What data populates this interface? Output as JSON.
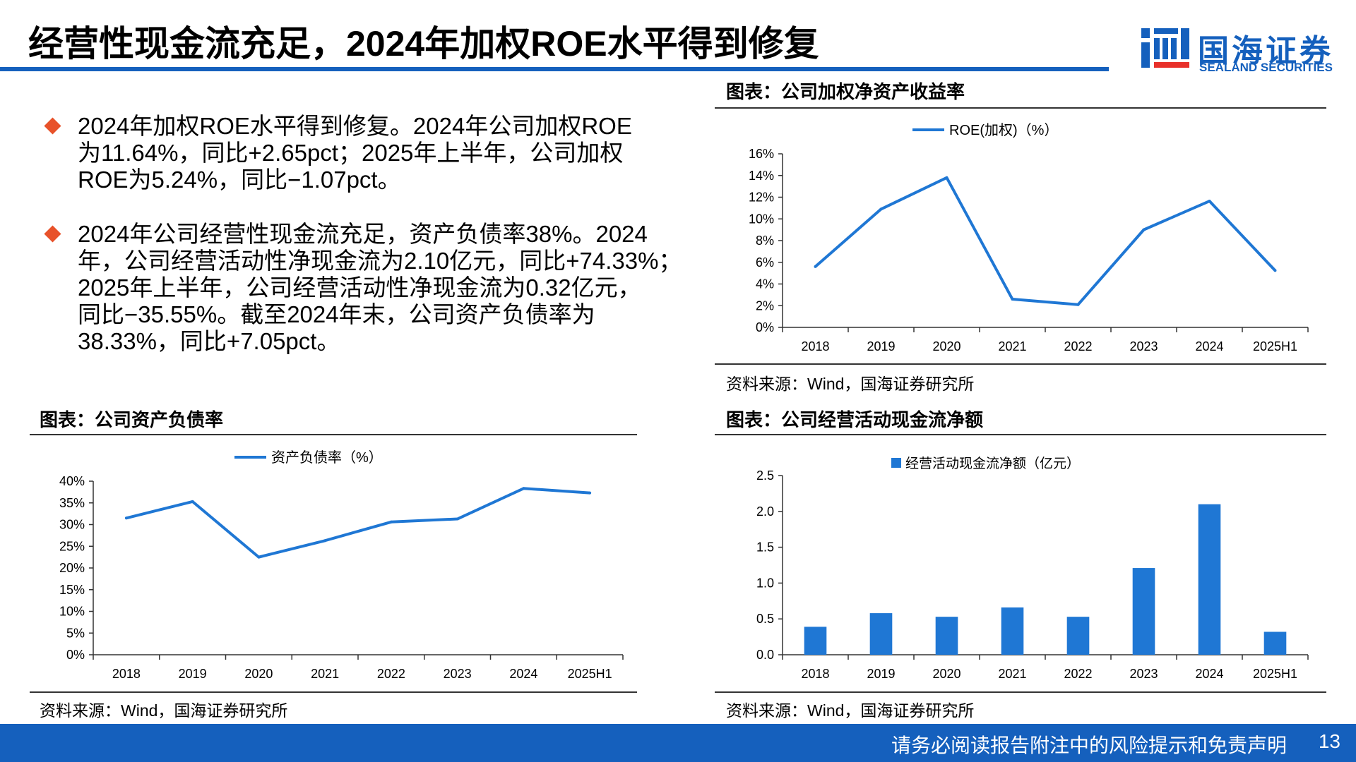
{
  "header": {
    "title": "经营性现金流充足，2024年加权ROE水平得到修复",
    "logo_cn": "国海证券",
    "logo_en": "SEALAND SECURITIES"
  },
  "bullets": [
    {
      "text": "2024年加权ROE水平得到修复。2024年公司加权ROE\n为11.64%，同比+2.65pct；2025年上半年，公司加权\nROE为5.24%，同比−1.07pct。"
    },
    {
      "text": "2024年公司经营性现金流充足，资产负债率38%。2024\n年，公司经营活动性净现金流为2.10亿元，同比+74.33%；\n2025年上半年，公司经营活动性净现金流为0.32亿元，\n同比−35.55%。截至2024年末，公司资产负债率为\n38.33%，同比+7.05pct。"
    }
  ],
  "panels": {
    "roe": {
      "title": "图表：公司加权净资产收益率",
      "source": "资料来源：Wind，国海证券研究所"
    },
    "debt": {
      "title": "图表：公司资产负债率",
      "source": "资料来源：Wind，国海证券研究所"
    },
    "cash": {
      "title": "图表：公司经营活动现金流净额",
      "source": "资料来源：Wind，国海证券研究所"
    }
  },
  "chart_data": [
    {
      "id": "roe",
      "type": "line",
      "title": "图表：公司加权净资产收益率",
      "legend": "ROE(加权)（%）",
      "categories": [
        "2018",
        "2019",
        "2020",
        "2021",
        "2022",
        "2023",
        "2024",
        "2025H1"
      ],
      "values": [
        5.6,
        10.9,
        13.8,
        2.6,
        2.1,
        9.0,
        11.64,
        5.24
      ],
      "yticks": [
        "0%",
        "2%",
        "4%",
        "6%",
        "8%",
        "10%",
        "12%",
        "14%",
        "16%"
      ],
      "ylim": [
        0,
        16
      ],
      "color": "#1f77d4"
    },
    {
      "id": "debt",
      "type": "line",
      "title": "图表：公司资产负债率",
      "legend": "资产负债率（%）",
      "categories": [
        "2018",
        "2019",
        "2020",
        "2021",
        "2022",
        "2023",
        "2024",
        "2025H1"
      ],
      "values": [
        31.5,
        35.3,
        22.5,
        26.3,
        30.6,
        31.3,
        38.33,
        37.3
      ],
      "yticks": [
        "0%",
        "5%",
        "10%",
        "15%",
        "20%",
        "25%",
        "30%",
        "35%",
        "40%"
      ],
      "ylim": [
        0,
        40
      ],
      "color": "#1f77d4"
    },
    {
      "id": "cash",
      "type": "bar",
      "title": "图表：公司经营活动现金流净额",
      "legend": "经营活动现金流净额（亿元）",
      "categories": [
        "2018",
        "2019",
        "2020",
        "2021",
        "2022",
        "2023",
        "2024",
        "2025H1"
      ],
      "values": [
        0.39,
        0.58,
        0.53,
        0.66,
        0.53,
        1.21,
        2.1,
        0.32
      ],
      "yticks": [
        "0.0",
        "0.5",
        "1.0",
        "1.5",
        "2.0",
        "2.5"
      ],
      "ylim": [
        0,
        2.5
      ],
      "color": "#1f77d4"
    }
  ],
  "footer": {
    "disclaimer": "请务必阅读报告附注中的风险提示和免责声明",
    "page": "13"
  }
}
